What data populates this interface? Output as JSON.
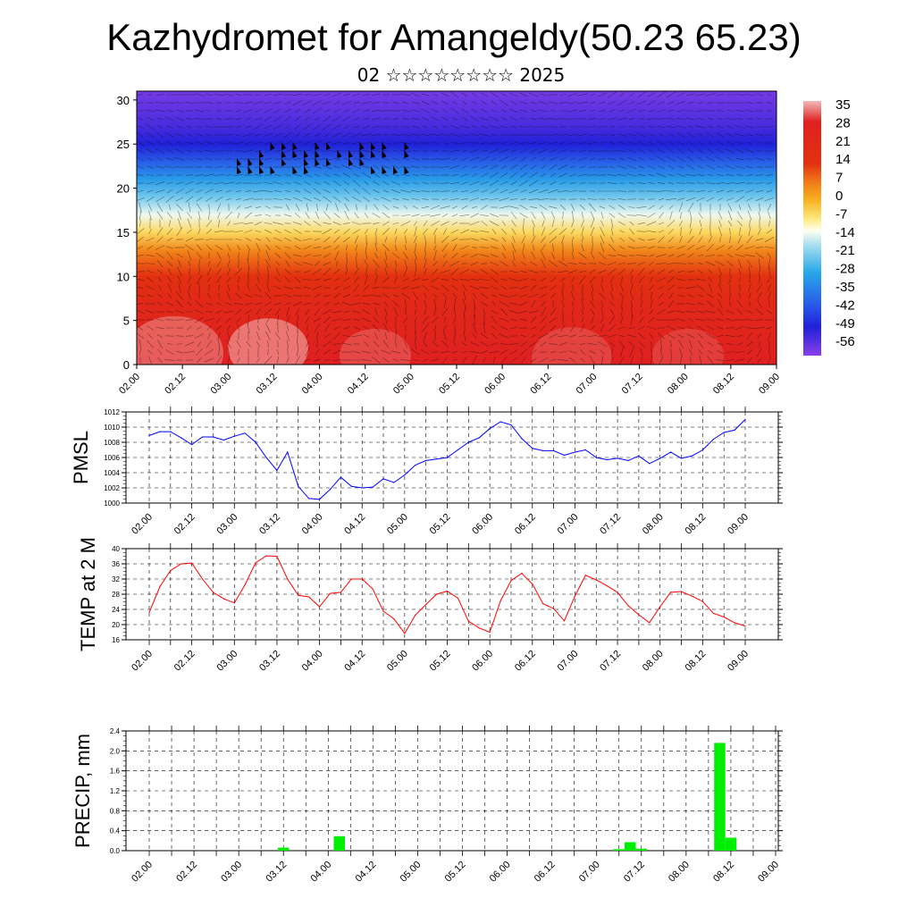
{
  "title": "Kazhydromet for Amangeldy(50.23 65.23)",
  "subtitle": "02 ☆☆☆☆☆☆☆☆ 2025",
  "chart_data": [
    {
      "type": "heatmap",
      "name": "cross-section",
      "title": "",
      "ylabel": "",
      "ylim": [
        0,
        31
      ],
      "y_ticks": [
        "0",
        "5",
        "10",
        "15",
        "20",
        "25",
        "30"
      ],
      "x_ticks": [
        "02.00",
        "02.12",
        "03.00",
        "03.12",
        "04.00",
        "04.12",
        "05.00",
        "05.12",
        "06.00",
        "06.12",
        "07.00",
        "07.12",
        "08.00",
        "08.12",
        "09.00"
      ],
      "colorbar_labels": [
        "35",
        "28",
        "21",
        "14",
        "7",
        "0",
        "-7",
        "-14",
        "-21",
        "-28",
        "-35",
        "-42",
        "-49",
        "-56"
      ],
      "colorbar_stops": [
        {
          "value": 38,
          "color": "#f2b8b8"
        },
        {
          "value": 30,
          "color": "#e02020"
        },
        {
          "value": 14,
          "color": "#e33010"
        },
        {
          "value": 7,
          "color": "#f07818"
        },
        {
          "value": 0,
          "color": "#f7b020"
        },
        {
          "value": -7,
          "color": "#fde878"
        },
        {
          "value": -12,
          "color": "#fffff0"
        },
        {
          "value": -18,
          "color": "#a0dcf0"
        },
        {
          "value": -28,
          "color": "#28a8e8"
        },
        {
          "value": -42,
          "color": "#2850e8"
        },
        {
          "value": -49,
          "color": "#2020d8"
        },
        {
          "value": -60,
          "color": "#8a40e8"
        }
      ],
      "temperature_profile": [
        {
          "height": 0,
          "value": 30
        },
        {
          "height": 6,
          "value": 24
        },
        {
          "height": 10,
          "value": 14
        },
        {
          "height": 13,
          "value": 5
        },
        {
          "height": 15,
          "value": -5
        },
        {
          "height": 17,
          "value": -13
        },
        {
          "height": 19,
          "value": -22
        },
        {
          "height": 21,
          "value": -30
        },
        {
          "height": 23,
          "value": -40
        },
        {
          "height": 25,
          "value": -49
        },
        {
          "height": 27,
          "value": -53
        },
        {
          "height": 31,
          "value": -58
        }
      ]
    },
    {
      "type": "line",
      "name": "PMSL",
      "ylabel": "PMSL",
      "ylim": [
        1000,
        1012
      ],
      "y_ticks": [
        "1000",
        "1002",
        "1004",
        "1006",
        "1008",
        "1010",
        "1012"
      ],
      "x_ticks": [
        "02.00",
        "02.12",
        "03.00",
        "03.12",
        "04.00",
        "04.12",
        "05.00",
        "05.12",
        "06.00",
        "06.12",
        "07.00",
        "07.12",
        "08.00",
        "08.12",
        "09.00"
      ],
      "color": "#0000ff",
      "x": [
        0,
        3,
        6,
        9,
        12,
        15,
        18,
        21,
        24,
        27,
        30,
        33,
        36,
        39,
        42,
        45,
        48,
        51,
        54,
        57,
        60,
        63,
        66,
        69,
        72,
        75,
        78,
        81,
        84,
        87,
        90,
        93,
        96,
        99,
        102,
        105,
        108,
        111,
        114,
        117,
        120,
        123,
        126,
        129,
        132,
        135,
        138,
        141,
        144,
        147,
        150,
        153,
        156,
        159,
        162,
        165,
        168
      ],
      "values": [
        1008.9,
        1009.4,
        1009.4,
        1008.6,
        1007.7,
        1008.7,
        1008.7,
        1008.3,
        1008.8,
        1009.2,
        1008.0,
        1006.0,
        1004.3,
        1006.7,
        1002.2,
        1000.6,
        1000.5,
        1001.8,
        1003.4,
        1002.2,
        1002.0,
        1002.1,
        1003.2,
        1002.7,
        1003.7,
        1005.0,
        1005.6,
        1005.8,
        1006.0,
        1007.0,
        1008.0,
        1008.6,
        1009.8,
        1010.7,
        1010.3,
        1008.5,
        1007.2,
        1006.9,
        1006.9,
        1006.3,
        1006.7,
        1007.0,
        1006.0,
        1005.7,
        1005.9,
        1005.6,
        1006.2,
        1005.2,
        1005.9,
        1006.7,
        1005.9,
        1006.2,
        1007.0,
        1008.4,
        1009.3,
        1009.6,
        1011.0
      ]
    },
    {
      "type": "line",
      "name": "TEMP at 2 M",
      "ylabel": "TEMP at 2 M",
      "ylim": [
        16,
        40
      ],
      "y_ticks": [
        "16",
        "20",
        "24",
        "28",
        "32",
        "36",
        "40"
      ],
      "x_ticks": [
        "02.00",
        "02.12",
        "03.00",
        "03.12",
        "04.00",
        "04.12",
        "05.00",
        "05.12",
        "06.00",
        "06.12",
        "07.00",
        "07.12",
        "08.00",
        "08.12",
        "09.00"
      ],
      "color": "#ff0000",
      "x": [
        0,
        3,
        6,
        9,
        12,
        15,
        18,
        21,
        24,
        27,
        30,
        33,
        36,
        39,
        42,
        45,
        48,
        51,
        54,
        57,
        60,
        63,
        66,
        69,
        72,
        75,
        78,
        81,
        84,
        87,
        90,
        93,
        96,
        99,
        102,
        105,
        108,
        111,
        114,
        117,
        120,
        123,
        126,
        129,
        132,
        135,
        138,
        141,
        144,
        147,
        150,
        153,
        156,
        159,
        162,
        165,
        168
      ],
      "values": [
        23.2,
        30.0,
        34.2,
        36.0,
        36.2,
        32.0,
        28.5,
        26.8,
        25.7,
        30.5,
        36.3,
        38.1,
        38.0,
        32.0,
        27.7,
        27.3,
        24.7,
        28.2,
        28.5,
        32.0,
        32.0,
        29.4,
        23.5,
        21.5,
        17.7,
        22.5,
        25.3,
        28.0,
        28.8,
        27.0,
        20.9,
        19.1,
        18.0,
        26.2,
        31.6,
        33.5,
        30.7,
        25.5,
        24.2,
        21.0,
        27.5,
        33.0,
        31.8,
        30.2,
        28.5,
        25.0,
        22.6,
        20.5,
        24.7,
        28.5,
        28.7,
        27.5,
        26.1,
        23.0,
        22.0,
        20.5,
        19.6
      ]
    },
    {
      "type": "bar",
      "name": "PRECIP, mm",
      "ylabel": "PRECIP, mm",
      "ylim": [
        0,
        2.4
      ],
      "y_ticks": [
        "0.0",
        "0.4",
        "0.8",
        "1.2",
        "1.6",
        "2.0",
        "2.4"
      ],
      "x_ticks": [
        "02.00",
        "02.12",
        "03.00",
        "03.12",
        "04.00",
        "04.12",
        "05.00",
        "05.12",
        "06.00",
        "06.12",
        "07.00",
        "07.12",
        "08.00",
        "08.12",
        "09.00"
      ],
      "color": "#00ee00",
      "bar_hours": 3,
      "bars": [
        {
          "x": 36,
          "value": 0.06
        },
        {
          "x": 51,
          "value": 0.29
        },
        {
          "x": 126,
          "value": 0.03
        },
        {
          "x": 129,
          "value": 0.17
        },
        {
          "x": 132,
          "value": 0.04
        },
        {
          "x": 153,
          "value": 2.16
        },
        {
          "x": 156,
          "value": 0.26
        }
      ]
    }
  ]
}
